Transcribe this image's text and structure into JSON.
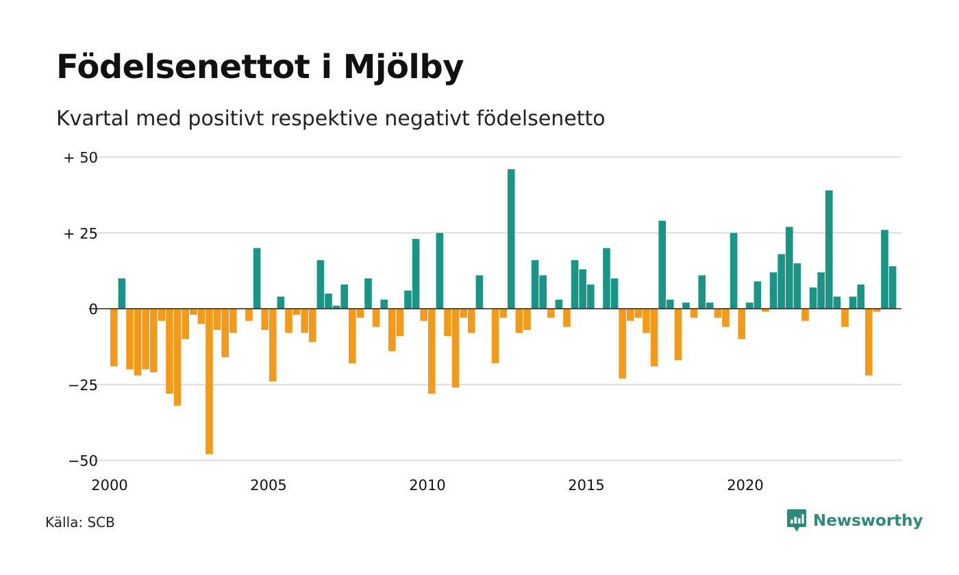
{
  "title": "Födelsenettot i Mjölby",
  "subtitle": "Kvartal med positivt respektive negativt födelsenetto",
  "source": "Källa: SCB",
  "brand": {
    "name": "Newsworthy",
    "icon": "newsworthy-logo-icon"
  },
  "colors": {
    "positive": "#1a9585",
    "negative": "#f39a1b",
    "grid": "#dddddd",
    "baseline": "#222222",
    "text": "#111111"
  },
  "chart_data": {
    "type": "bar",
    "x_unit": "quarter",
    "start": "2000 Q1",
    "y_ticks": [
      50,
      25,
      0,
      -25,
      -50
    ],
    "y_tick_labels": [
      "+ 50",
      "+ 25",
      "0",
      "−25",
      "−50"
    ],
    "x_ticks": [
      2000,
      2005,
      2010,
      2015,
      2020
    ],
    "ylim": [
      -50,
      50
    ],
    "grid": true,
    "values": [
      -19,
      10,
      -20,
      -22,
      -20,
      -21,
      -4,
      -28,
      -32,
      -10,
      -2,
      -5,
      -48,
      -7,
      -16,
      -8,
      0,
      -4,
      20,
      -7,
      -24,
      4,
      -8,
      -2,
      -8,
      -11,
      16,
      5,
      1,
      8,
      -18,
      -3,
      10,
      -6,
      3,
      -14,
      -9,
      6,
      23,
      -4,
      -28,
      25,
      -9,
      -26,
      -3,
      -8,
      11,
      0,
      -18,
      -3,
      46,
      -8,
      -7,
      16,
      11,
      -3,
      3,
      -6,
      16,
      13,
      8,
      0,
      20,
      10,
      -23,
      -4,
      -3,
      -8,
      -19,
      29,
      3,
      -17,
      2,
      -3,
      11,
      2,
      -3,
      -6,
      25,
      -10,
      2,
      9,
      -1,
      12,
      18,
      27,
      15,
      -4,
      7,
      12,
      39,
      4,
      -6,
      4,
      8,
      -22,
      -1,
      26,
      14
    ]
  }
}
